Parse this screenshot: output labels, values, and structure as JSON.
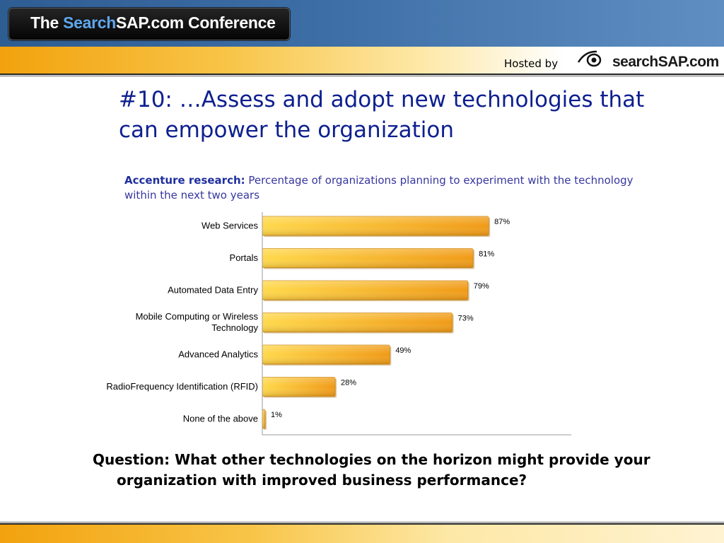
{
  "header": {
    "logo": {
      "part1": "The ",
      "part2": "Search",
      "part3": "SAP.com",
      "part4": " Conference"
    },
    "hosted_by": "Hosted by",
    "brand": "searchSAP.com"
  },
  "title": "#10:  …Assess and adopt new technologies that can empower the organization",
  "caption": {
    "lead": "Accenture research:",
    "text": "  Percentage of organizations planning to experiment with the technology within the next two years"
  },
  "question": "Question:  What other technologies on the horizon might provide your organization with improved business performance?",
  "colors": {
    "bar_light": "#ffd547",
    "bar_dark": "#f09a16",
    "title": "#0d1f8f",
    "caption": "#3636a0"
  },
  "chart_data": {
    "type": "bar",
    "orientation": "horizontal",
    "categories": [
      "Web Services",
      "Portals",
      "Automated Data Entry",
      "Mobile Computing or Wireless Technology",
      "Advanced Analytics",
      "RadioFrequency Identification (RFID)",
      "None of the above"
    ],
    "category_lines": [
      [
        "Web Services"
      ],
      [
        "Portals"
      ],
      [
        "Automated Data Entry"
      ],
      [
        "Mobile Computing or Wireless",
        "Technology"
      ],
      [
        "Advanced Analytics"
      ],
      [
        "RadioFrequency Identification (RFID)"
      ],
      [
        "None of the above"
      ]
    ],
    "values": [
      87,
      81,
      79,
      73,
      49,
      28,
      1
    ],
    "value_labels": [
      "87%",
      "81%",
      "79%",
      "73%",
      "49%",
      "28%",
      "1%"
    ],
    "unit": "%",
    "xlim": [
      0,
      100
    ],
    "grid": false,
    "legend": "none"
  }
}
